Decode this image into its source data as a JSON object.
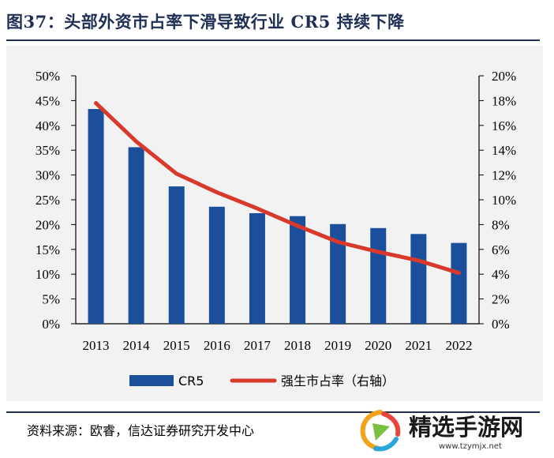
{
  "header": {
    "title": "图37：头部外资市占率下滑导致行业 CR5 持续下降"
  },
  "footer": {
    "source": "资料来源：欧睿，信达证券研究开发中心"
  },
  "watermark": {
    "name": "精选手游网",
    "url": "www.tzymjx.net"
  },
  "colors": {
    "bar": "#1b4f9c",
    "line": "#d9392b",
    "title": "#1f2f55",
    "background": "#f2f2f2"
  },
  "chart_data": {
    "type": "bar",
    "title": "",
    "categories": [
      "2013",
      "2014",
      "2015",
      "2016",
      "2017",
      "2018",
      "2019",
      "2020",
      "2021",
      "2022"
    ],
    "series": [
      {
        "name": "CR5",
        "type": "bar",
        "axis": "left",
        "values": [
          43.3,
          35.6,
          27.7,
          23.6,
          22.3,
          21.7,
          20.1,
          19.3,
          18.1,
          16.3
        ]
      },
      {
        "name": "强生市占率（右轴）",
        "type": "line",
        "axis": "right",
        "values": [
          17.8,
          14.7,
          12.1,
          10.6,
          9.3,
          7.9,
          6.6,
          5.8,
          5.1,
          4.1
        ]
      }
    ],
    "y_left": {
      "min": 0,
      "max": 50,
      "step": 5,
      "format": "percent"
    },
    "y_right": {
      "min": 0,
      "max": 20,
      "step": 2,
      "format": "percent"
    },
    "legend_position": "bottom",
    "grid": false
  }
}
